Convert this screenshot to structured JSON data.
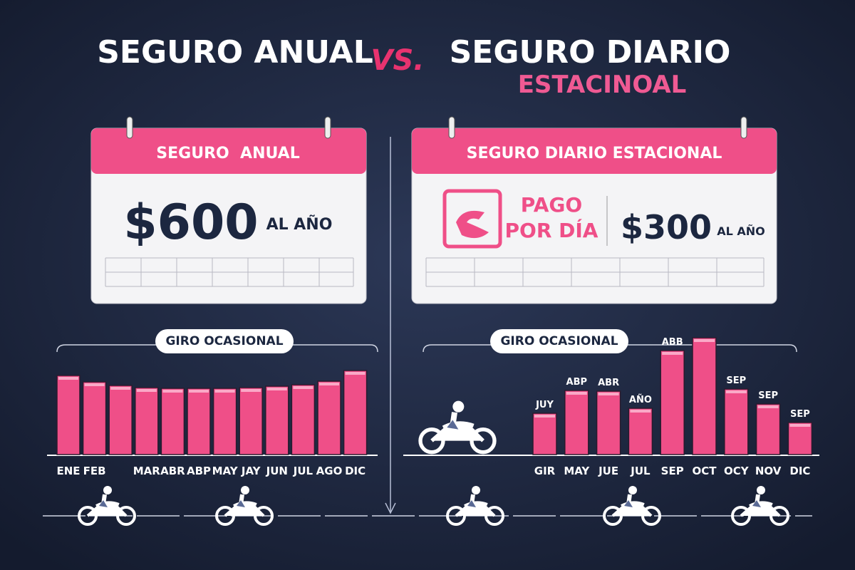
{
  "header": {
    "left_title": "SEGURO ANUAL",
    "versus": "VS.",
    "right_title": "SEGURO DIARIO",
    "right_subtitle": "ESTACINOAL"
  },
  "cards": [
    {
      "title": "SEGURO  ANUAL",
      "price": "$600",
      "period": "AL AÑO"
    },
    {
      "title": "SEGURO DIARIO ESTACIONAL",
      "note": "PAGO POR DÍA",
      "price": "$300",
      "period": "AL AÑO"
    }
  ],
  "chart_data": [
    {
      "type": "bar",
      "title": "GIRO OCASIONAL",
      "color": "#ef4f88",
      "categories": [
        "ENE",
        "FEB",
        null,
        "MAR",
        "ABR",
        "ABP",
        "MAY",
        "JAY",
        "JUN",
        "JUL",
        "AGO",
        "DIC"
      ],
      "values": [
        111,
        102,
        97,
        94,
        93,
        93,
        93,
        94,
        96,
        98,
        103,
        118
      ]
    },
    {
      "type": "bar",
      "title": "GIRO OCASIONAL",
      "color": "#ef4f88",
      "categories": [
        "GIR",
        "MAY",
        "JUE",
        "JUL",
        "SEP",
        "OCT",
        "OCY",
        "NOV",
        "DIC"
      ],
      "values": [
        58,
        90,
        89,
        65,
        146,
        164,
        92,
        71,
        45
      ],
      "annotations": [
        "JUY",
        "ABP",
        "ABR",
        "AÑO",
        "ABB",
        null,
        "SEP",
        "SEP",
        "SEP"
      ]
    }
  ]
}
